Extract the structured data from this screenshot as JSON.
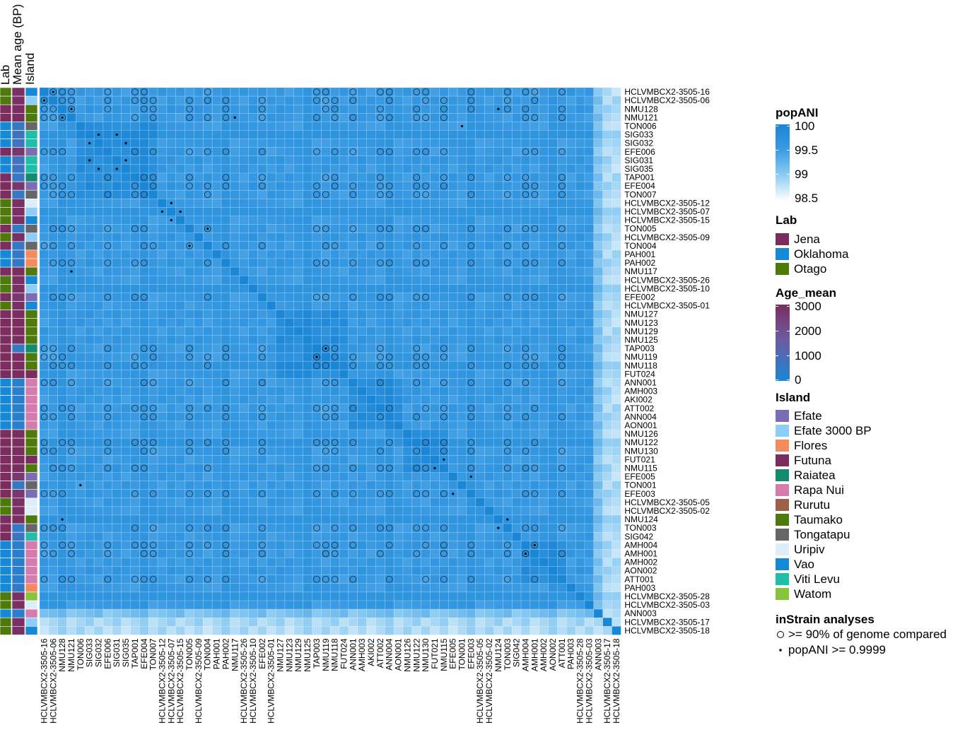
{
  "chart_data": {
    "type": "heatmap",
    "samples": [
      "HCLVMBCX2-3505-16",
      "HCLVMBCX2-3505-06",
      "NMU128",
      "NMU121",
      "TON006",
      "SIG033",
      "SIG032",
      "EFE006",
      "SIG031",
      "SIG035",
      "TAP001",
      "EFE004",
      "TON007",
      "HCLVMBCX2-3505-12",
      "HCLVMBCX2-3505-07",
      "HCLVMBCX2-3505-15",
      "TON005",
      "HCLVMBCX2-3505-09",
      "TON004",
      "PAH001",
      "PAH002",
      "NMU117",
      "HCLVMBCX2-3505-26",
      "HCLVMBCX2-3505-10",
      "EFE002",
      "HCLVMBCX2-3505-01",
      "NMU127",
      "NMU123",
      "NMU129",
      "NMU125",
      "TAP003",
      "NMU119",
      "NMU118",
      "FUT024",
      "ANN001",
      "AMH003",
      "AKI002",
      "ATT002",
      "ANN004",
      "AON001",
      "NMU126",
      "NMU122",
      "NMU130",
      "FUT021",
      "NMU115",
      "EFE005",
      "TON001",
      "EFE003",
      "HCLVMBCX2-3505-05",
      "HCLVMBCX2-3505-02",
      "NMU124",
      "TON003",
      "SIG042",
      "AMH004",
      "AMH001",
      "AMH002",
      "AON002",
      "ATT001",
      "PAH003",
      "HCLVMBCX2-3505-28",
      "HCLVMBCX2-3505-03",
      "ANN003",
      "HCLVMBCX2-3505-17",
      "HCLVMBCX2-3505-18"
    ],
    "annotation_headers": [
      "Lab",
      "Mean age (BP)",
      "Island"
    ],
    "lab": [
      "Otago",
      "Otago",
      "Jena",
      "Jena",
      "Oklahoma",
      "Oklahoma",
      "Oklahoma",
      "Jena",
      "Oklahoma",
      "Oklahoma",
      "Jena",
      "Jena",
      "Jena",
      "Otago",
      "Otago",
      "Otago",
      "Jena",
      "Otago",
      "Jena",
      "Oklahoma",
      "Oklahoma",
      "Jena",
      "Otago",
      "Otago",
      "Jena",
      "Otago",
      "Jena",
      "Jena",
      "Jena",
      "Jena",
      "Jena",
      "Jena",
      "Jena",
      "Jena",
      "Oklahoma",
      "Oklahoma",
      "Oklahoma",
      "Oklahoma",
      "Oklahoma",
      "Oklahoma",
      "Jena",
      "Jena",
      "Jena",
      "Jena",
      "Jena",
      "Jena",
      "Jena",
      "Jena",
      "Otago",
      "Otago",
      "Jena",
      "Jena",
      "Jena",
      "Oklahoma",
      "Oklahoma",
      "Oklahoma",
      "Oklahoma",
      "Oklahoma",
      "Oklahoma",
      "Otago",
      "Otago",
      "Oklahoma",
      "Otago",
      "Otago"
    ],
    "age_mean": [
      2900,
      2900,
      3000,
      3000,
      500,
      700,
      700,
      2700,
      700,
      700,
      500,
      2700,
      500,
      2900,
      2900,
      2900,
      500,
      2900,
      500,
      500,
      500,
      3000,
      2900,
      2900,
      2700,
      2900,
      3000,
      3000,
      3000,
      3000,
      500,
      3000,
      3000,
      3000,
      300,
      300,
      300,
      300,
      300,
      300,
      3000,
      3000,
      3000,
      3000,
      3000,
      2700,
      500,
      2700,
      2900,
      2900,
      3000,
      500,
      700,
      300,
      300,
      300,
      300,
      300,
      500,
      2900,
      2900,
      300,
      2900,
      2900
    ],
    "island": [
      "Vao",
      "Efate 3000 BP",
      "Taumako",
      "Taumako",
      "Tongatapu",
      "Viti Levu",
      "Viti Levu",
      "Efate",
      "Viti Levu",
      "Viti Levu",
      "Raiatea",
      "Efate",
      "Tongatapu",
      "Uripiv",
      "Efate 3000 BP",
      "Vao",
      "Tongatapu",
      "Efate 3000 BP",
      "Tongatapu",
      "Flores",
      "Flores",
      "Taumako",
      "Vao",
      "Efate 3000 BP",
      "Efate",
      "Vao",
      "Taumako",
      "Taumako",
      "Taumako",
      "Taumako",
      "Raiatea",
      "Taumako",
      "Taumako",
      "Futuna",
      "Rapa Nui",
      "Rapa Nui",
      "Rapa Nui",
      "Rapa Nui",
      "Rapa Nui",
      "Rapa Nui",
      "Taumako",
      "Taumako",
      "Taumako",
      "Futuna",
      "Taumako",
      "Efate",
      "Tongatapu",
      "Efate",
      "Uripiv",
      "Uripiv",
      "Taumako",
      "Tongatapu",
      "Viti Levu",
      "Rapa Nui",
      "Rapa Nui",
      "Rapa Nui",
      "Rapa Nui",
      "Rapa Nui",
      "Flores",
      "Watom",
      "Uripiv",
      "Rapa Nui",
      "Efate 3000 BP",
      "Vao"
    ],
    "circle_columns": [
      0,
      1,
      2,
      3,
      7,
      10,
      11,
      12,
      16,
      18,
      20,
      24,
      30,
      31,
      32,
      34,
      37,
      38,
      41,
      42,
      44,
      47,
      51,
      53,
      54,
      57
    ],
    "circle_rows": [
      0,
      1,
      2,
      3,
      7,
      10,
      11,
      12,
      16,
      18,
      20,
      24,
      30,
      31,
      32,
      34,
      37,
      38,
      41,
      42,
      44,
      47,
      51,
      53,
      54,
      57
    ],
    "high_ani_pairs": [
      [
        0,
        1
      ],
      [
        2,
        3
      ],
      [
        5,
        6
      ],
      [
        5,
        8
      ],
      [
        6,
        9
      ],
      [
        8,
        9
      ],
      [
        13,
        14
      ],
      [
        14,
        15
      ],
      [
        16,
        18
      ],
      [
        3,
        21
      ],
      [
        30,
        31
      ],
      [
        43,
        44
      ],
      [
        45,
        47
      ],
      [
        50,
        51
      ],
      [
        53,
        54
      ],
      [
        4,
        46
      ],
      [
        2,
        50
      ]
    ],
    "group_blocks": [
      [
        4,
        12
      ],
      [
        26,
        33
      ],
      [
        34,
        39
      ],
      [
        40,
        44
      ],
      [
        53,
        57
      ]
    ],
    "legend": {
      "popani_title": "popANI",
      "popani_ticks": [
        "100",
        "99.5",
        "99",
        "98.5"
      ],
      "popani_range": [
        98.5,
        100
      ],
      "lab_title": "Lab",
      "lab_items": [
        {
          "label": "Jena",
          "color": "#7b2d5f"
        },
        {
          "label": "Oklahoma",
          "color": "#1588d6"
        },
        {
          "label": "Otago",
          "color": "#4d7a0b"
        }
      ],
      "age_title": "Age_mean",
      "age_ticks": [
        "3000",
        "2000",
        "1000",
        "0"
      ],
      "age_range": [
        0,
        3000
      ],
      "island_title": "Island",
      "island_items": [
        {
          "label": "Efate",
          "color": "#7a6db3"
        },
        {
          "label": "Efate 3000 BP",
          "color": "#8dcdf7"
        },
        {
          "label": "Flores",
          "color": "#f58a5d"
        },
        {
          "label": "Futuna",
          "color": "#7b2d5f"
        },
        {
          "label": "Raiatea",
          "color": "#138a6e"
        },
        {
          "label": "Rapa Nui",
          "color": "#d57bad"
        },
        {
          "label": "Rurutu",
          "color": "#9d5f45"
        },
        {
          "label": "Taumako",
          "color": "#4d7a0b"
        },
        {
          "label": "Tongatapu",
          "color": "#666666"
        },
        {
          "label": "Uripiv",
          "color": "#ddeefa"
        },
        {
          "label": "Vao",
          "color": "#1588d6"
        },
        {
          "label": "Viti Levu",
          "color": "#1fbea8"
        },
        {
          "label": "Watom",
          "color": "#86c53b"
        }
      ],
      "instrain_title": "inStrain analyses",
      "instrain_circle": ">= 90% of genome compared",
      "instrain_dot": "popANI  >= 0.9999"
    }
  }
}
